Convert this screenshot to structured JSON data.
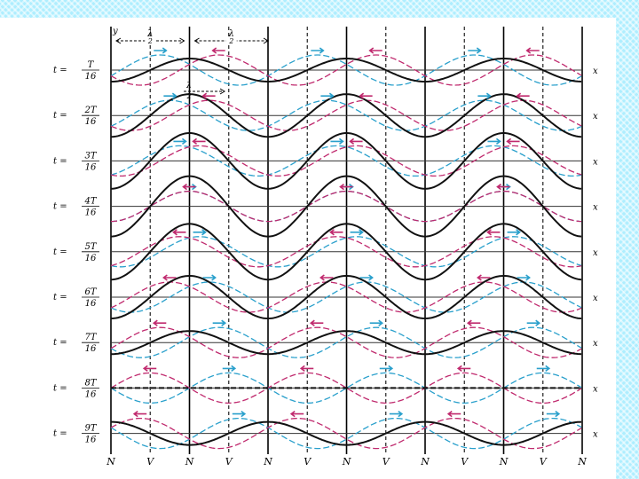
{
  "diagram": {
    "y_axis_label": "y",
    "x_axis_label": "x",
    "half_wavelength_label": {
      "numerator": "λ",
      "denominator": "2"
    },
    "rows": [
      {
        "prefix": "t =",
        "numerator": "T",
        "denominator": "16",
        "k": 1
      },
      {
        "prefix": "t =",
        "numerator": "2T",
        "denominator": "16",
        "k": 2
      },
      {
        "prefix": "t =",
        "numerator": "3T",
        "denominator": "16",
        "k": 3
      },
      {
        "prefix": "t =",
        "numerator": "4T",
        "denominator": "16",
        "k": 4
      },
      {
        "prefix": "t =",
        "numerator": "5T",
        "denominator": "16",
        "k": 5
      },
      {
        "prefix": "t =",
        "numerator": "6T",
        "denominator": "16",
        "k": 6
      },
      {
        "prefix": "t =",
        "numerator": "7T",
        "denominator": "16",
        "k": 7
      },
      {
        "prefix": "t =",
        "numerator": "8T",
        "denominator": "16",
        "k": 8
      },
      {
        "prefix": "t =",
        "numerator": "9T",
        "denominator": "16",
        "k": 9
      }
    ],
    "nodes_antinodes": [
      "N",
      "V",
      "N",
      "V",
      "N",
      "V",
      "N",
      "V",
      "N",
      "V",
      "N",
      "V",
      "N"
    ],
    "colors": {
      "incident_wave": "#2aa0cc",
      "reflected_wave": "#c02a6e",
      "resultant_wave": "#111111",
      "axis": "#333333"
    }
  }
}
